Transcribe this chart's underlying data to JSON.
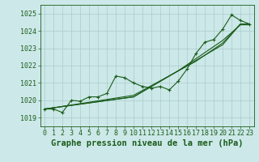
{
  "title": "Graphe pression niveau de la mer (hPa)",
  "background_color": "#cce8e8",
  "line_color": "#1a5c1a",
  "grid_color": "#aacccc",
  "ylim": [
    1018.5,
    1025.5
  ],
  "yticks": [
    1019,
    1020,
    1021,
    1022,
    1023,
    1024,
    1025
  ],
  "xlim": [
    -0.5,
    23.5
  ],
  "xticks": [
    0,
    1,
    2,
    3,
    4,
    5,
    6,
    7,
    8,
    9,
    10,
    11,
    12,
    13,
    14,
    15,
    16,
    17,
    18,
    19,
    20,
    21,
    22,
    23
  ],
  "straight_line": [
    1019.5,
    1019.57,
    1019.64,
    1019.71,
    1019.78,
    1019.85,
    1019.92,
    1019.99,
    1020.06,
    1020.13,
    1020.2,
    1020.5,
    1020.8,
    1021.1,
    1021.4,
    1021.7,
    1022.0,
    1022.3,
    1022.6,
    1022.9,
    1023.2,
    1023.8,
    1024.4,
    1024.4
  ],
  "straight_line2": [
    1019.5,
    1019.57,
    1019.64,
    1019.71,
    1019.78,
    1019.85,
    1019.92,
    1019.99,
    1020.06,
    1020.13,
    1020.2,
    1020.5,
    1020.8,
    1021.1,
    1021.4,
    1021.7,
    1022.05,
    1022.4,
    1022.75,
    1023.1,
    1023.45,
    1023.9,
    1024.35,
    1024.35
  ],
  "straight_line3": [
    1019.5,
    1019.57,
    1019.65,
    1019.73,
    1019.81,
    1019.89,
    1019.97,
    1020.05,
    1020.13,
    1020.21,
    1020.29,
    1020.57,
    1020.85,
    1021.13,
    1021.41,
    1021.69,
    1021.97,
    1022.25,
    1022.6,
    1022.95,
    1023.3,
    1023.85,
    1024.4,
    1024.4
  ],
  "marked_series": [
    1019.5,
    1019.5,
    1019.3,
    1020.0,
    1019.95,
    1020.2,
    1020.2,
    1020.4,
    1021.4,
    1021.3,
    1021.0,
    1020.8,
    1020.7,
    1020.8,
    1020.6,
    1021.1,
    1021.8,
    1022.7,
    1023.35,
    1023.5,
    1024.1,
    1024.92,
    1024.6,
    1024.4
  ],
  "marker_style": "+",
  "marker_size": 3,
  "line_width": 0.8,
  "tick_fontsize": 6,
  "title_fontsize": 7.5
}
